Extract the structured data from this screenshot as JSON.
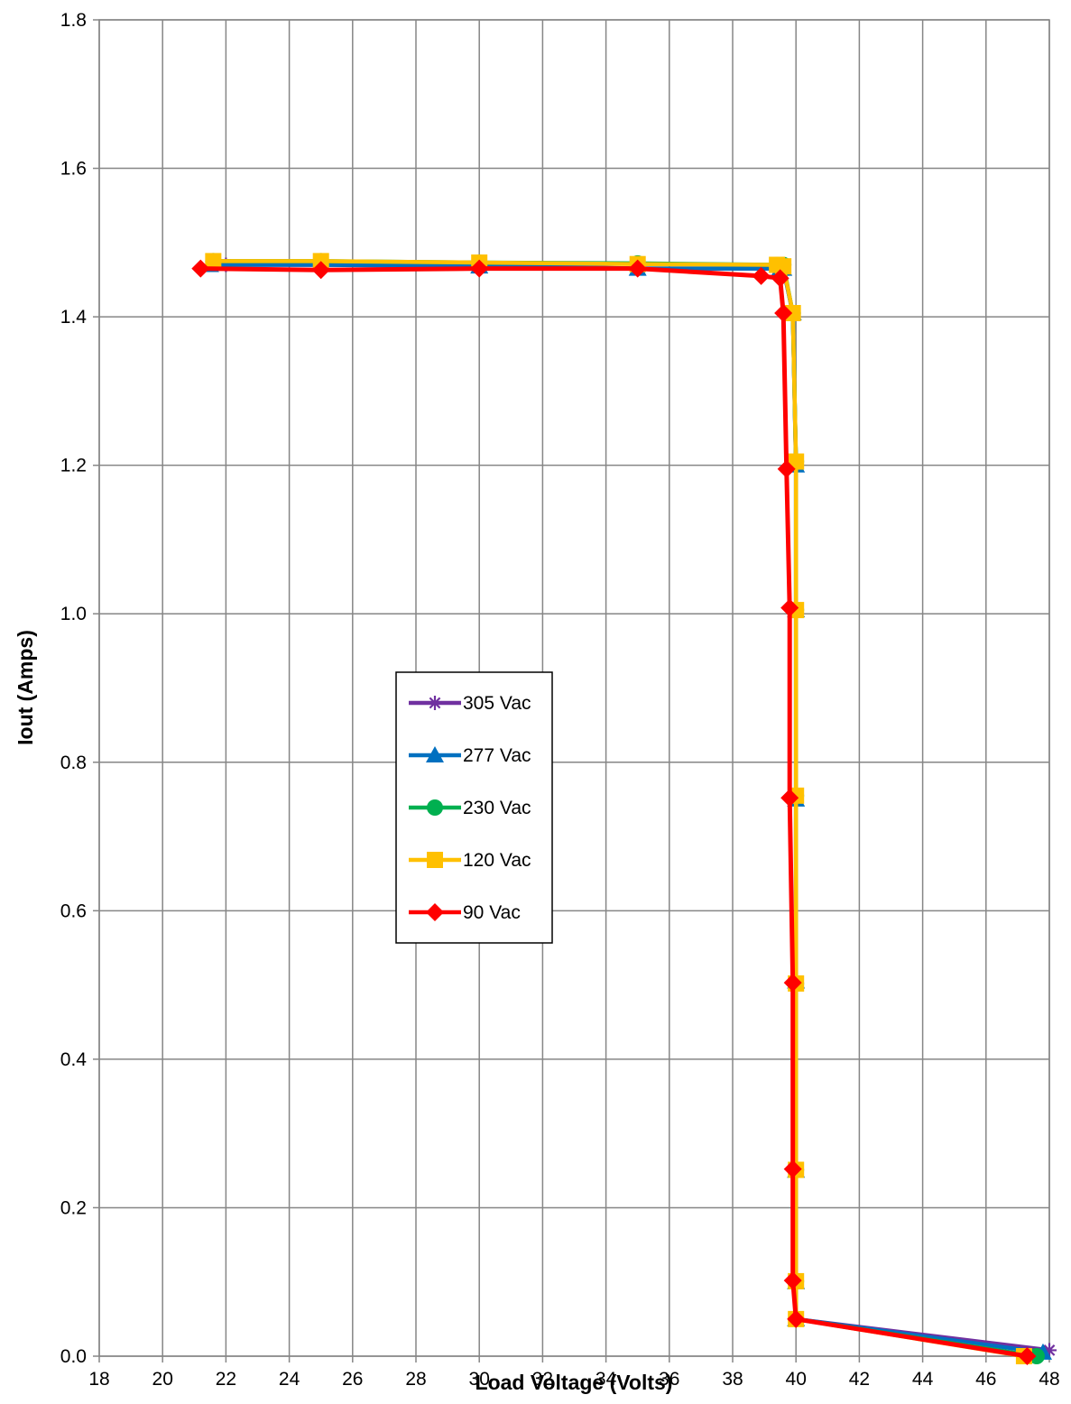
{
  "chart_data": {
    "type": "scatter",
    "title": "",
    "xlabel": "Load Voltage (Volts)",
    "ylabel": "Iout (Amps)",
    "xlim": [
      18,
      48
    ],
    "ylim": [
      0.0,
      1.8
    ],
    "xticks": [
      18,
      20,
      22,
      24,
      26,
      28,
      30,
      32,
      34,
      36,
      38,
      40,
      42,
      44,
      46,
      48
    ],
    "yticks": [
      0.0,
      0.2,
      0.4,
      0.6,
      0.8,
      1.0,
      1.2,
      1.4,
      1.6,
      1.8
    ],
    "xtick_labels": [
      "18",
      "20",
      "22",
      "24",
      "26",
      "28",
      "30",
      "32",
      "34",
      "36",
      "38",
      "40",
      "42",
      "44",
      "46",
      "48"
    ],
    "ytick_labels": [
      "0.0",
      "0.2",
      "0.4",
      "0.6",
      "0.8",
      "1.0",
      "1.2",
      "1.4",
      "1.6",
      "1.8"
    ],
    "grid": true,
    "legend_position": "center-left",
    "series": [
      {
        "name": "305 Vac",
        "color": "#7030A0",
        "marker": "star",
        "x": [
          22.0,
          25.0,
          30.0,
          35.0,
          39.5,
          39.6,
          39.9,
          40.0,
          40.0,
          40.0,
          40.0,
          40.0,
          40.0,
          40.0,
          48.0
        ],
        "y": [
          1.47,
          1.47,
          1.47,
          1.465,
          1.465,
          1.465,
          1.405,
          1.2,
          1.005,
          0.75,
          0.505,
          0.25,
          0.1,
          0.05,
          0.008
        ]
      },
      {
        "name": "277 Vac",
        "color": "#0070C0",
        "marker": "triangle",
        "x": [
          21.5,
          25.0,
          30.0,
          35.0,
          39.5,
          39.6,
          39.9,
          40.0,
          40.0,
          40.0,
          40.0,
          40.0,
          40.0,
          40.0,
          47.8
        ],
        "y": [
          1.47,
          1.47,
          1.468,
          1.465,
          1.465,
          1.465,
          1.405,
          1.2,
          1.005,
          0.75,
          0.505,
          0.25,
          0.1,
          0.05,
          0.005
        ]
      },
      {
        "name": "230 Vac",
        "color": "#00B050",
        "marker": "circle",
        "x": [
          21.6,
          25.0,
          30.0,
          35.0,
          39.4,
          39.6,
          39.9,
          40.0,
          40.0,
          40.0,
          40.0,
          40.0,
          40.0,
          40.0,
          47.6
        ],
        "y": [
          1.475,
          1.475,
          1.473,
          1.472,
          1.47,
          1.47,
          1.405,
          1.205,
          1.005,
          0.755,
          0.502,
          0.251,
          0.101,
          0.05,
          0.0
        ]
      },
      {
        "name": "120 Vac",
        "color": "#FFC000",
        "marker": "square",
        "x": [
          21.6,
          25.0,
          30.0,
          35.0,
          39.4,
          39.6,
          39.9,
          40.0,
          40.0,
          40.0,
          40.0,
          40.0,
          40.0,
          40.0,
          47.2
        ],
        "y": [
          1.475,
          1.475,
          1.473,
          1.471,
          1.47,
          1.468,
          1.405,
          1.205,
          1.005,
          0.755,
          0.502,
          0.251,
          0.101,
          0.05,
          0.0
        ]
      },
      {
        "name": "90 Vac",
        "color": "#FF0000",
        "marker": "diamond",
        "x": [
          21.2,
          25.0,
          30.0,
          35.0,
          38.9,
          39.5,
          39.6,
          39.7,
          39.8,
          39.8,
          39.9,
          39.9,
          39.9,
          40.0,
          47.3
        ],
        "y": [
          1.465,
          1.463,
          1.465,
          1.465,
          1.455,
          1.452,
          1.405,
          1.195,
          1.008,
          0.752,
          0.503,
          0.252,
          0.102,
          0.05,
          0.0
        ]
      }
    ]
  }
}
